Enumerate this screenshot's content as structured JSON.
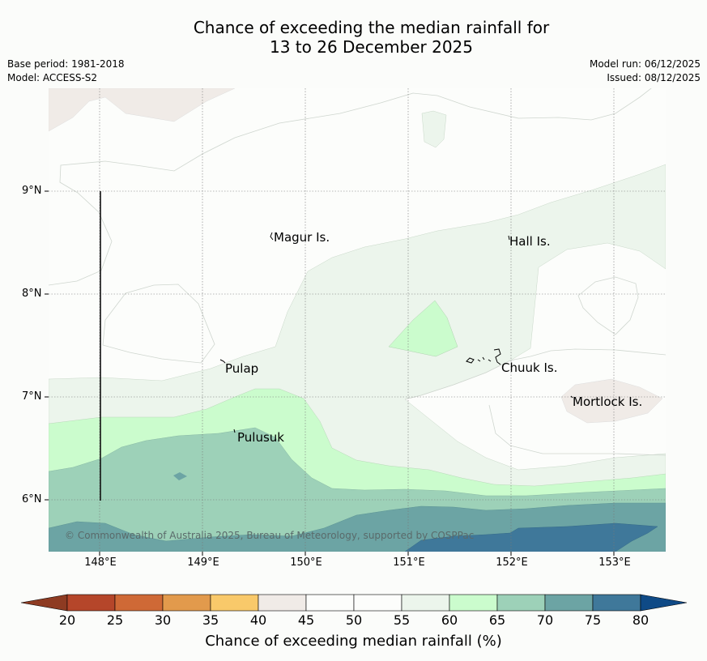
{
  "title_line1": "Chance of exceeding the median rainfall for",
  "title_line2": "13 to 26 December 2025",
  "meta": {
    "base_period": "Base period: 1981-2018",
    "model": "Model: ACCESS-S2",
    "model_run": "Model run: 06/12/2025",
    "issued": "Issued: 08/12/2025"
  },
  "latitudes": [
    "9°N",
    "8°N",
    "7°N",
    "6°N"
  ],
  "longitudes": [
    "148°E",
    "149°E",
    "150°E",
    "151°E",
    "152°E",
    "153°E"
  ],
  "places": {
    "magur": "Magur Is.",
    "hall": "Hall Is.",
    "pulap": "Pulap",
    "chuuk": "Chuuk Is.",
    "mortlock": "Mortlock Is.",
    "pulusuk": "Pulusuk"
  },
  "copyright": "© Commonwealth of Australia 2025, Bureau of Meteorology, supported by COSPPac",
  "colorbar": {
    "label": "Chance of exceeding median rainfall (%)",
    "ticks": [
      "20",
      "25",
      "30",
      "35",
      "40",
      "45",
      "50",
      "55",
      "60",
      "65",
      "70",
      "75",
      "80"
    ],
    "colors": [
      "#b5462a",
      "#cf6936",
      "#e29a4c",
      "#f9c96a",
      "#f0ebe7",
      "#fcfdfb",
      "#fcfdfb",
      "#ecf5ec",
      "#cbfccd",
      "#9dd1b8",
      "#6ca4a4",
      "#3f789a"
    ],
    "under_color": "#8e3b22",
    "over_color": "#0f4a86"
  }
}
